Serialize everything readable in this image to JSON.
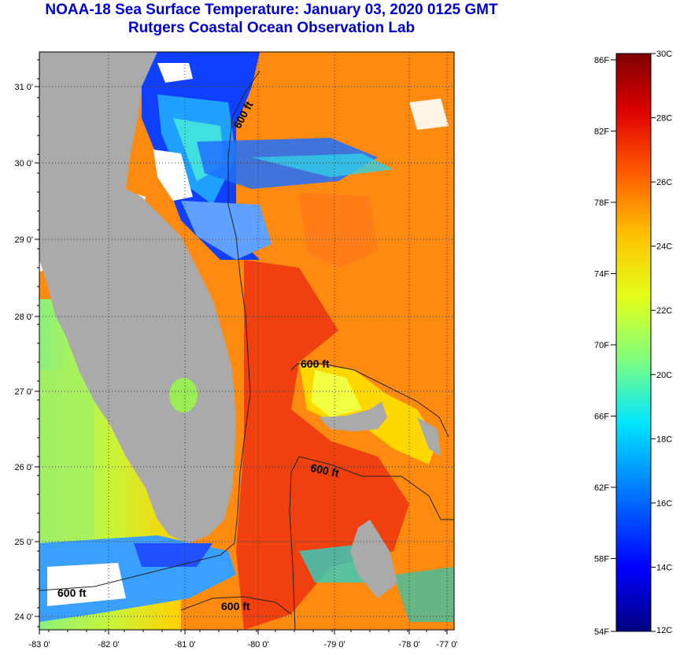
{
  "title": {
    "line1": "NOAA-18 Sea Surface Temperature:  January 03, 2020 0125 GMT",
    "line2": "Rutgers Coastal Ocean Observation Lab"
  },
  "map": {
    "lat_labels": [
      "31 0'",
      "30 0'",
      "29 0'",
      "28 0'",
      "27 0'",
      "26 0'",
      "25 0'",
      "24 0'"
    ],
    "lon_labels": [
      "-83 0'",
      "-82 0'",
      "-81 0'",
      "-80 0'",
      "-79 0'",
      "-78 0'",
      "-77 0'"
    ],
    "contour_label": "600 ft"
  },
  "colorbar": {
    "f_labels": [
      "86F",
      "82F",
      "78F",
      "74F",
      "70F",
      "66F",
      "62F",
      "58F",
      "54F"
    ],
    "c_labels": [
      "30C",
      "28C",
      "26C",
      "24C",
      "22C",
      "20C",
      "18C",
      "16C",
      "14C",
      "12C"
    ],
    "min_c": 12,
    "max_c": 30,
    "colors": [
      "#00007f",
      "#0000ff",
      "#007fff",
      "#00e5ff",
      "#7fff7f",
      "#e5ff19",
      "#ffbf00",
      "#ff5500",
      "#dd0000",
      "#7f0000"
    ]
  }
}
